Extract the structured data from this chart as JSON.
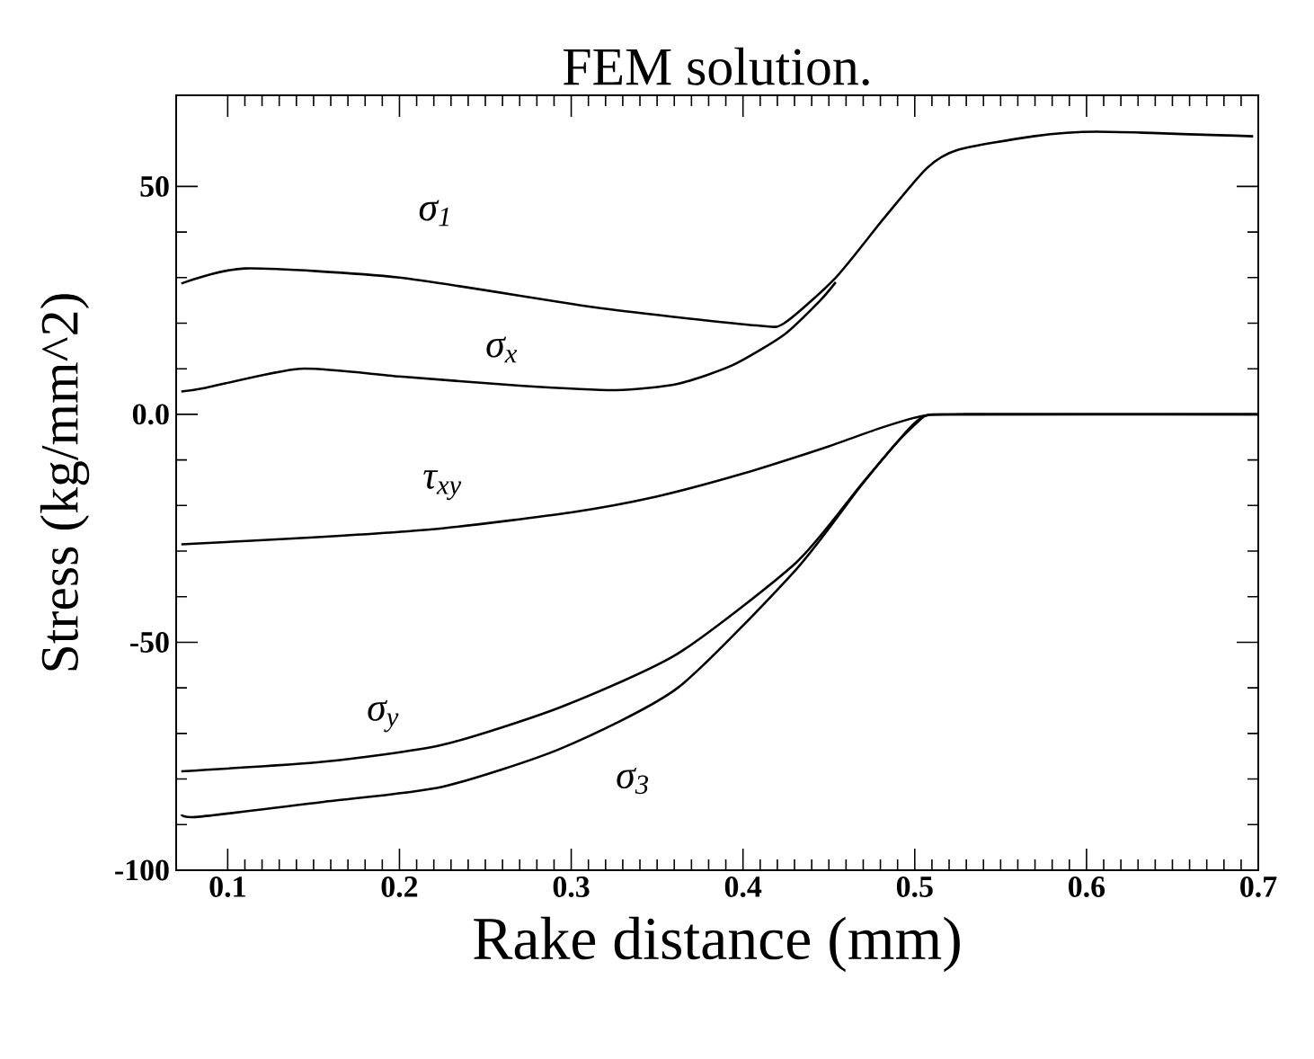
{
  "chart_data": {
    "type": "line",
    "title": "FEM solution.",
    "xlabel": "Rake distance (mm)",
    "ylabel": "Stress (kg/mm^2)",
    "xlim": [
      0.07,
      0.7
    ],
    "ylim": [
      -100,
      70
    ],
    "xticks": [
      0.1,
      0.2,
      0.3,
      0.4,
      0.5,
      0.6,
      0.7
    ],
    "yticks": [
      -100,
      -50,
      {
        "value": 0,
        "label": "0.0"
      },
      50
    ],
    "grid": false,
    "legend": false,
    "marker": "none",
    "line_style": "solid",
    "series": [
      {
        "name": "σ$_{1}$",
        "color": "#000000",
        "x": [
          0.073,
          0.11,
          0.2,
          0.317,
          0.408,
          0.424,
          0.454,
          0.482,
          0.507,
          0.525,
          0.569,
          0.606,
          0.697
        ],
        "values": [
          28.7,
          32,
          30,
          23.3,
          19.5,
          20,
          30,
          43,
          54,
          58,
          61,
          62,
          61
        ]
      },
      {
        "name": "σ$_{x}$",
        "color": "#000000",
        "x": [
          0.073,
          0.087,
          0.142,
          0.2,
          0.27,
          0.326,
          0.362,
          0.394,
          0.424,
          0.445,
          0.454
        ],
        "values": [
          5,
          5.8,
          10,
          8.3,
          6.3,
          5.3,
          6.7,
          10.8,
          17.5,
          25,
          29
        ]
      },
      {
        "name": "τ$_{xy}$",
        "color": "#000000",
        "x": [
          0.073,
          0.15,
          0.225,
          0.3,
          0.35,
          0.4,
          0.45,
          0.48,
          0.505,
          0.53,
          0.7
        ],
        "values": [
          -28.5,
          -27,
          -25,
          -21.5,
          -18,
          -13,
          -7,
          -3,
          -0.3,
          0,
          0
        ]
      },
      {
        "name": "σ$_{y}$",
        "color": "#000000",
        "x": [
          0.073,
          0.156,
          0.225,
          0.294,
          0.362,
          0.431,
          0.468,
          0.49,
          0.505
        ],
        "values": [
          -78.3,
          -76.2,
          -72.5,
          -64.2,
          -52.5,
          -32.5,
          -15.8,
          -6,
          -0.5
        ]
      },
      {
        "name": "σ$_{3}$",
        "color": "#000000",
        "x": [
          0.073,
          0.083,
          0.156,
          0.225,
          0.294,
          0.362,
          0.431,
          0.468,
          0.49,
          0.505,
          0.53,
          0.7
        ],
        "values": [
          -87.8,
          -88.3,
          -85,
          -81.7,
          -73.3,
          -60,
          -34,
          -16,
          -6,
          -0.5,
          0,
          0
        ]
      }
    ]
  }
}
